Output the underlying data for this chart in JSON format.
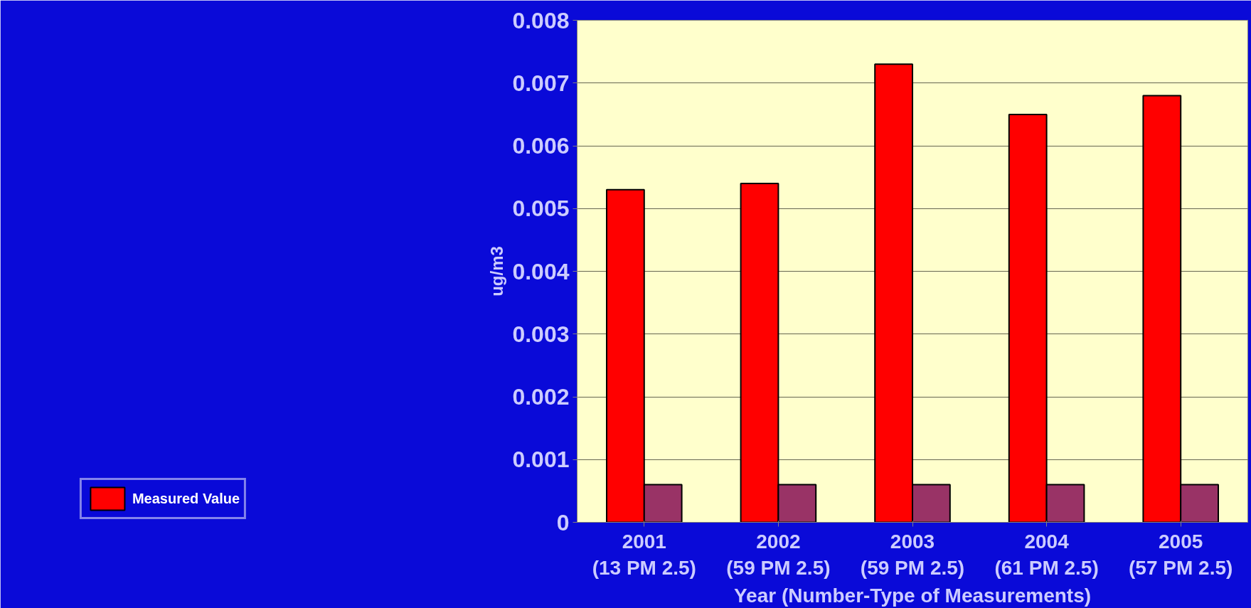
{
  "chart_data": {
    "type": "bar",
    "ylabel": "ug/m3",
    "xlabel": "Year (Number-Type of Measurements)",
    "categories": [
      "2001\n(13 PM 2.5)",
      "2002\n(59 PM 2.5)",
      "2003\n(59 PM 2.5)",
      "2004\n(61 PM 2.5)",
      "2005\n(57 PM 2.5)"
    ],
    "series": [
      {
        "name": "Measured Value",
        "color": "#ff0000",
        "values": [
          0.0053,
          0.0054,
          0.0073,
          0.0065,
          0.0068
        ]
      },
      {
        "color": "#993366",
        "values": [
          0.0006,
          0.0006,
          0.0006,
          0.0006,
          0.0006
        ]
      }
    ],
    "ylim": [
      0,
      0.008
    ],
    "yticks": [
      0,
      0.001,
      0.002,
      0.003,
      0.004,
      0.005,
      0.006,
      0.007,
      0.008
    ],
    "grid": "y",
    "legend": "bottom left"
  }
}
